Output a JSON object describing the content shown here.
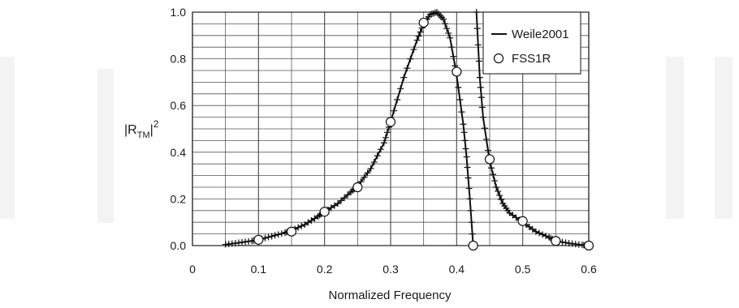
{
  "chart_data": {
    "type": "line",
    "title": "",
    "xlabel": "Normalized Frequency",
    "ylabel": {
      "main": "|R",
      "subscript": "TM",
      "close": "|",
      "superscript": "2"
    },
    "xlim": [
      0,
      0.6
    ],
    "ylim": [
      0,
      1.0
    ],
    "x_ticks": [
      0,
      0.1,
      0.2,
      0.3,
      0.4,
      0.5,
      0.6
    ],
    "x_tick_labels": [
      "0",
      "0.1",
      "0.2",
      "0.3",
      "0.4",
      "0.5",
      "0.6"
    ],
    "y_ticks": [
      0,
      0.2,
      0.4,
      0.6,
      0.8,
      1.0
    ],
    "y_tick_labels": [
      "0.0",
      "0.2",
      "0.4",
      "0.6",
      "0.8",
      "1.0"
    ],
    "grid": true,
    "legend_position": "top-right",
    "series": [
      {
        "name": "Weile2001",
        "style": "line with plus markers",
        "color": "#111111",
        "x": [
          0.05,
          0.07,
          0.09,
          0.1,
          0.12,
          0.14,
          0.15,
          0.17,
          0.19,
          0.2,
          0.22,
          0.24,
          0.25,
          0.27,
          0.29,
          0.3,
          0.32,
          0.34,
          0.35,
          0.36,
          0.37,
          0.38,
          0.39,
          0.4,
          0.41,
          0.415,
          0.42,
          0.425,
          0.43,
          0.435,
          0.44,
          0.45,
          0.46,
          0.47,
          0.48,
          0.5,
          0.52,
          0.54,
          0.55,
          0.57,
          0.59,
          0.6
        ],
        "y": [
          0.005,
          0.012,
          0.02,
          0.025,
          0.04,
          0.055,
          0.065,
          0.09,
          0.125,
          0.145,
          0.18,
          0.23,
          0.255,
          0.33,
          0.44,
          0.53,
          0.72,
          0.88,
          0.95,
          0.99,
          1.0,
          0.97,
          0.89,
          0.73,
          0.52,
          0.38,
          0.2,
          0.0,
          1.0,
          0.72,
          0.55,
          0.36,
          0.25,
          0.18,
          0.14,
          0.1,
          0.06,
          0.035,
          0.02,
          0.01,
          0.003,
          0.0
        ]
      },
      {
        "name": "FSS1R",
        "style": "open circle markers",
        "color": "#111111",
        "x": [
          0.1,
          0.15,
          0.2,
          0.25,
          0.3,
          0.35,
          0.4,
          0.425,
          0.45,
          0.5,
          0.55,
          0.6
        ],
        "y": [
          0.025,
          0.06,
          0.145,
          0.25,
          0.53,
          0.955,
          0.745,
          0.0,
          0.37,
          0.105,
          0.02,
          0.0
        ]
      }
    ]
  }
}
